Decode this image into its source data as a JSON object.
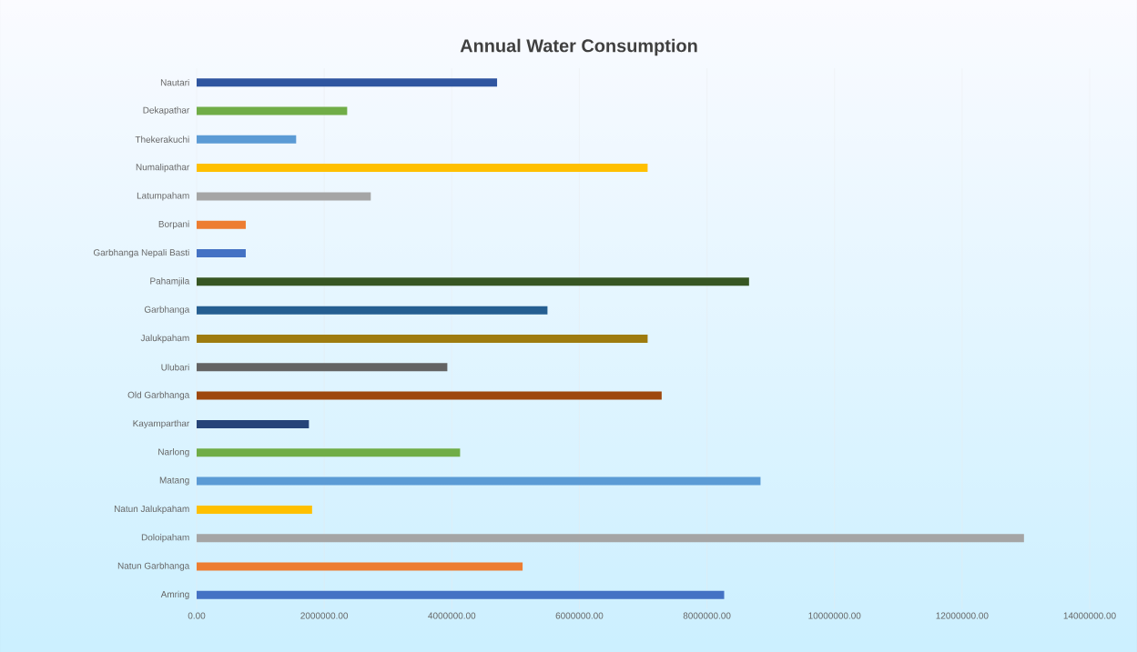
{
  "chart_data": {
    "type": "bar",
    "orientation": "horizontal",
    "title": "Annual Water Consumption",
    "categories": [
      "Nautari",
      "Dekapathar",
      "Thekerakuchi",
      "Numalipathar",
      "Latumpaham",
      "Borpani",
      "Garbhanga Nepali Basti",
      "Pahamjila",
      "Garbhanga",
      "Jalukpaham",
      "Ulubari",
      "Old Garbhanga",
      "Kayamparthar",
      "Narlong",
      "Matang",
      "Natun Jalukpaham",
      "Doloipaham",
      "Natun Garbhanga",
      "Amring"
    ],
    "values": [
      4710000,
      2360000,
      1560000,
      7070000,
      2730000,
      770000,
      770000,
      8660000,
      5500000,
      7070000,
      3930000,
      7290000,
      1760000,
      4130000,
      8840000,
      1810000,
      12970000,
      5110000,
      8270000
    ],
    "colors": [
      "#2f55a0",
      "#70ad47",
      "#5b9bd5",
      "#ffc000",
      "#a5a5a5",
      "#ed7d31",
      "#4472c4",
      "#375623",
      "#255e91",
      "#9e7b0f",
      "#636363",
      "#9e480e",
      "#264478",
      "#70ad47",
      "#5b9bd5",
      "#ffc000",
      "#a5a5a5",
      "#ed7d31",
      "#4472c4"
    ],
    "xlim": [
      0,
      14000000
    ],
    "xticks": [
      {
        "value": 0,
        "label": "0.00"
      },
      {
        "value": 2000000,
        "label": "2000000.00"
      },
      {
        "value": 4000000,
        "label": "4000000.00"
      },
      {
        "value": 6000000,
        "label": "6000000.00"
      },
      {
        "value": 8000000,
        "label": "8000000.00"
      },
      {
        "value": 10000000,
        "label": "10000000.00"
      },
      {
        "value": 12000000,
        "label": "12000000.00"
      },
      {
        "value": 14000000,
        "label": "14000000.00"
      }
    ],
    "grid": "x"
  }
}
